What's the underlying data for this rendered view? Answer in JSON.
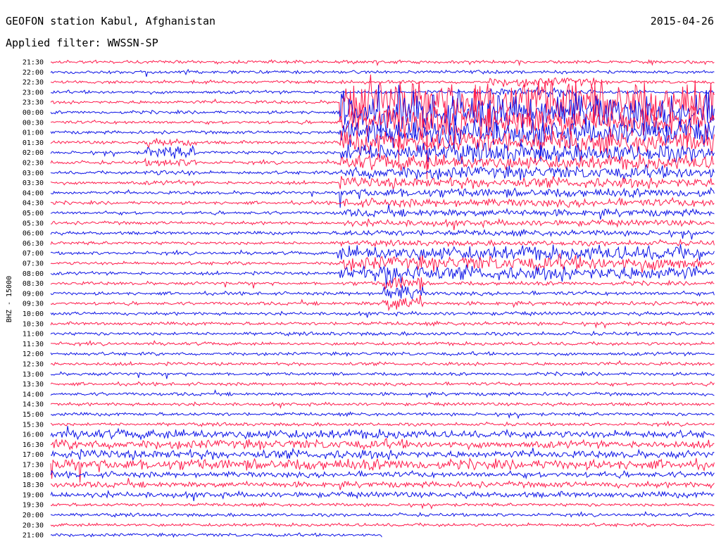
{
  "chart_data": {
    "type": "line",
    "title": "GEOFON station Kabul, Afghanistan",
    "subtitle": "Applied filter: WWSSN-SP",
    "date": "2015-04-26",
    "ylabel": "BHZ - 15000",
    "row_labels": [
      "21:30",
      "22:00",
      "22:30",
      "23:00",
      "23:30",
      "00:00",
      "00:30",
      "01:00",
      "01:30",
      "02:00",
      "02:30",
      "03:00",
      "03:30",
      "04:00",
      "04:30",
      "05:00",
      "05:30",
      "06:00",
      "06:30",
      "07:00",
      "07:30",
      "08:00",
      "08:30",
      "09:00",
      "09:30",
      "10:00",
      "10:30",
      "11:00",
      "11:30",
      "12:00",
      "12:30",
      "13:00",
      "13:30",
      "14:00",
      "14:30",
      "15:00",
      "15:30",
      "16:00",
      "16:30",
      "17:00",
      "17:30",
      "18:00",
      "18:30",
      "19:00",
      "19:30",
      "20:00",
      "20:30",
      "21:00"
    ],
    "trace_colors": [
      "#ff1a4b",
      "#0b12e6"
    ],
    "row_minutes": 30,
    "last_row_fraction": 0.5,
    "grid": false
  }
}
